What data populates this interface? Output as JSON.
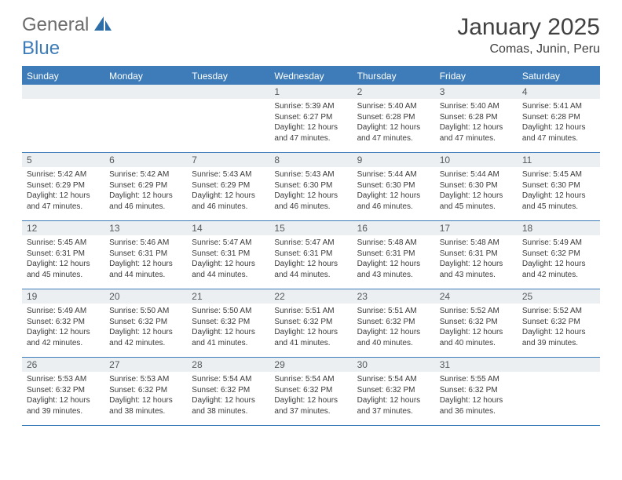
{
  "brand": {
    "part1": "General",
    "part2": "Blue"
  },
  "title": "January 2025",
  "location": "Comas, Junin, Peru",
  "colors": {
    "accent": "#3d7cb8",
    "dayNumBg": "#eceff1",
    "text": "#414141",
    "bodyText": "#3a3a3a",
    "logoGray": "#6c6c6c"
  },
  "daysOfWeek": [
    "Sunday",
    "Monday",
    "Tuesday",
    "Wednesday",
    "Thursday",
    "Friday",
    "Saturday"
  ],
  "weeks": [
    [
      {
        "n": "",
        "sunrise": "",
        "sunset": "",
        "daylight": ""
      },
      {
        "n": "",
        "sunrise": "",
        "sunset": "",
        "daylight": ""
      },
      {
        "n": "",
        "sunrise": "",
        "sunset": "",
        "daylight": ""
      },
      {
        "n": "1",
        "sunrise": "Sunrise: 5:39 AM",
        "sunset": "Sunset: 6:27 PM",
        "daylight": "Daylight: 12 hours and 47 minutes."
      },
      {
        "n": "2",
        "sunrise": "Sunrise: 5:40 AM",
        "sunset": "Sunset: 6:28 PM",
        "daylight": "Daylight: 12 hours and 47 minutes."
      },
      {
        "n": "3",
        "sunrise": "Sunrise: 5:40 AM",
        "sunset": "Sunset: 6:28 PM",
        "daylight": "Daylight: 12 hours and 47 minutes."
      },
      {
        "n": "4",
        "sunrise": "Sunrise: 5:41 AM",
        "sunset": "Sunset: 6:28 PM",
        "daylight": "Daylight: 12 hours and 47 minutes."
      }
    ],
    [
      {
        "n": "5",
        "sunrise": "Sunrise: 5:42 AM",
        "sunset": "Sunset: 6:29 PM",
        "daylight": "Daylight: 12 hours and 47 minutes."
      },
      {
        "n": "6",
        "sunrise": "Sunrise: 5:42 AM",
        "sunset": "Sunset: 6:29 PM",
        "daylight": "Daylight: 12 hours and 46 minutes."
      },
      {
        "n": "7",
        "sunrise": "Sunrise: 5:43 AM",
        "sunset": "Sunset: 6:29 PM",
        "daylight": "Daylight: 12 hours and 46 minutes."
      },
      {
        "n": "8",
        "sunrise": "Sunrise: 5:43 AM",
        "sunset": "Sunset: 6:30 PM",
        "daylight": "Daylight: 12 hours and 46 minutes."
      },
      {
        "n": "9",
        "sunrise": "Sunrise: 5:44 AM",
        "sunset": "Sunset: 6:30 PM",
        "daylight": "Daylight: 12 hours and 46 minutes."
      },
      {
        "n": "10",
        "sunrise": "Sunrise: 5:44 AM",
        "sunset": "Sunset: 6:30 PM",
        "daylight": "Daylight: 12 hours and 45 minutes."
      },
      {
        "n": "11",
        "sunrise": "Sunrise: 5:45 AM",
        "sunset": "Sunset: 6:30 PM",
        "daylight": "Daylight: 12 hours and 45 minutes."
      }
    ],
    [
      {
        "n": "12",
        "sunrise": "Sunrise: 5:45 AM",
        "sunset": "Sunset: 6:31 PM",
        "daylight": "Daylight: 12 hours and 45 minutes."
      },
      {
        "n": "13",
        "sunrise": "Sunrise: 5:46 AM",
        "sunset": "Sunset: 6:31 PM",
        "daylight": "Daylight: 12 hours and 44 minutes."
      },
      {
        "n": "14",
        "sunrise": "Sunrise: 5:47 AM",
        "sunset": "Sunset: 6:31 PM",
        "daylight": "Daylight: 12 hours and 44 minutes."
      },
      {
        "n": "15",
        "sunrise": "Sunrise: 5:47 AM",
        "sunset": "Sunset: 6:31 PM",
        "daylight": "Daylight: 12 hours and 44 minutes."
      },
      {
        "n": "16",
        "sunrise": "Sunrise: 5:48 AM",
        "sunset": "Sunset: 6:31 PM",
        "daylight": "Daylight: 12 hours and 43 minutes."
      },
      {
        "n": "17",
        "sunrise": "Sunrise: 5:48 AM",
        "sunset": "Sunset: 6:31 PM",
        "daylight": "Daylight: 12 hours and 43 minutes."
      },
      {
        "n": "18",
        "sunrise": "Sunrise: 5:49 AM",
        "sunset": "Sunset: 6:32 PM",
        "daylight": "Daylight: 12 hours and 42 minutes."
      }
    ],
    [
      {
        "n": "19",
        "sunrise": "Sunrise: 5:49 AM",
        "sunset": "Sunset: 6:32 PM",
        "daylight": "Daylight: 12 hours and 42 minutes."
      },
      {
        "n": "20",
        "sunrise": "Sunrise: 5:50 AM",
        "sunset": "Sunset: 6:32 PM",
        "daylight": "Daylight: 12 hours and 42 minutes."
      },
      {
        "n": "21",
        "sunrise": "Sunrise: 5:50 AM",
        "sunset": "Sunset: 6:32 PM",
        "daylight": "Daylight: 12 hours and 41 minutes."
      },
      {
        "n": "22",
        "sunrise": "Sunrise: 5:51 AM",
        "sunset": "Sunset: 6:32 PM",
        "daylight": "Daylight: 12 hours and 41 minutes."
      },
      {
        "n": "23",
        "sunrise": "Sunrise: 5:51 AM",
        "sunset": "Sunset: 6:32 PM",
        "daylight": "Daylight: 12 hours and 40 minutes."
      },
      {
        "n": "24",
        "sunrise": "Sunrise: 5:52 AM",
        "sunset": "Sunset: 6:32 PM",
        "daylight": "Daylight: 12 hours and 40 minutes."
      },
      {
        "n": "25",
        "sunrise": "Sunrise: 5:52 AM",
        "sunset": "Sunset: 6:32 PM",
        "daylight": "Daylight: 12 hours and 39 minutes."
      }
    ],
    [
      {
        "n": "26",
        "sunrise": "Sunrise: 5:53 AM",
        "sunset": "Sunset: 6:32 PM",
        "daylight": "Daylight: 12 hours and 39 minutes."
      },
      {
        "n": "27",
        "sunrise": "Sunrise: 5:53 AM",
        "sunset": "Sunset: 6:32 PM",
        "daylight": "Daylight: 12 hours and 38 minutes."
      },
      {
        "n": "28",
        "sunrise": "Sunrise: 5:54 AM",
        "sunset": "Sunset: 6:32 PM",
        "daylight": "Daylight: 12 hours and 38 minutes."
      },
      {
        "n": "29",
        "sunrise": "Sunrise: 5:54 AM",
        "sunset": "Sunset: 6:32 PM",
        "daylight": "Daylight: 12 hours and 37 minutes."
      },
      {
        "n": "30",
        "sunrise": "Sunrise: 5:54 AM",
        "sunset": "Sunset: 6:32 PM",
        "daylight": "Daylight: 12 hours and 37 minutes."
      },
      {
        "n": "31",
        "sunrise": "Sunrise: 5:55 AM",
        "sunset": "Sunset: 6:32 PM",
        "daylight": "Daylight: 12 hours and 36 minutes."
      },
      {
        "n": "",
        "sunrise": "",
        "sunset": "",
        "daylight": ""
      }
    ]
  ]
}
